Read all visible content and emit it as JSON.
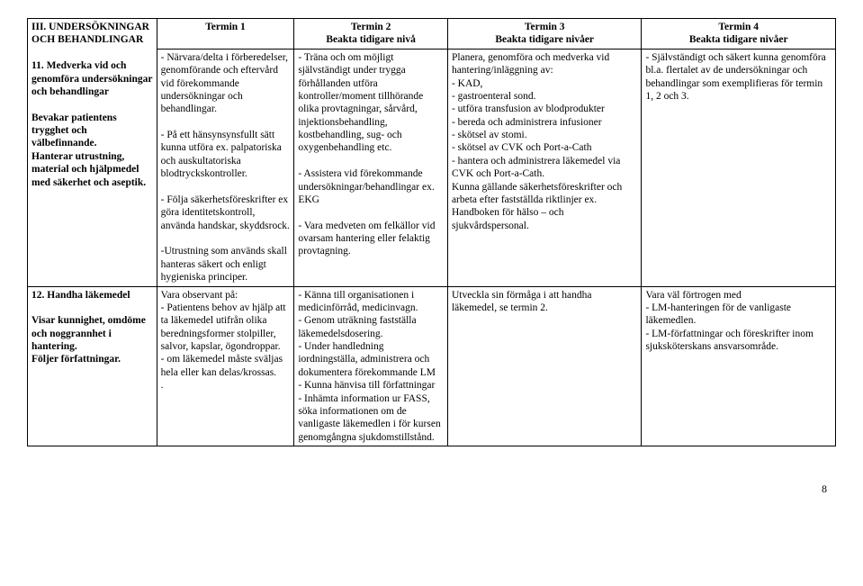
{
  "headers": {
    "t1": "Termin 1",
    "t2": "Termin 2",
    "t2_sub": "Beakta tidigare nivå",
    "t3": "Termin 3",
    "t3_sub": "Beakta tidigare nivåer",
    "t4": "Termin 4",
    "t4_sub": "Beakta tidigare nivåer"
  },
  "row1": {
    "col0_heading": "III.   UNDERSÖKNINGAR OCH BEHANDLINGAR",
    "col0_item_title": "11.  Medverka vid och genomföra undersökningar och behandlingar",
    "col0_para1": "Bevakar patientens trygghet och välbefinnande.",
    "col0_para2": "Hanterar utrustning, material och hjälpmedel med säkerhet och aseptik.",
    "t1_p1": "- Närvara/delta i förberedelser, genomförande och eftervård vid förekommande undersökningar och behandlingar.",
    "t1_p2": "- På ett hänsynsynsfullt sätt kunna utföra ex. palpatoriska och auskultatoriska blodtryckskontroller.",
    "t1_p3": "- Följa säkerhetsföreskrifter ex göra identitetskontroll, använda handskar, skyddsrock.",
    "t1_p4": " -Utrustning som används skall hanteras säkert och enligt hygieniska principer.",
    "t2_p1": "- Träna och om möjligt självständigt under trygga förhållanden utföra kontroller/moment tillhörande olika provtagningar, sårvård, injektionsbehandling, kostbehandling, sug- och oxygenbehandling etc.",
    "t2_p2": "- Assistera vid förekommande undersökningar/behandlingar ex. EKG",
    "t2_p3": "- Vara medveten om felkällor vid ovarsam hantering eller felaktig provtagning.",
    "t3_intro": "Planera, genomföra och medverka vid hantering/inläggning av:",
    "t3_li1": "-    KAD,",
    "t3_li2": "-    gastroenteral sond.",
    "t3_li3": "-    utföra transfusion av blodprodukter",
    "t3_li4": "-    bereda och administrera infusioner",
    "t3_li5": "-    skötsel av stomi.",
    "t3_li6": "-    skötsel av  CVK och Port-a-Cath",
    "t3_li7": "-    hantera och administrera läkemedel via CVK och Port-a-Cath.",
    "t3_tail": "Kunna gällande säkerhetsföreskrifter och arbeta efter fastställda riktlinjer ex. Handboken för hälso – och sjukvårdspersonal.",
    "t4_p1": "- Självständigt och säkert kunna genomföra bl.a. flertalet av de undersökningar och behandlingar som exemplifieras för termin 1, 2 och 3."
  },
  "row2": {
    "col0_item_title": "12. Handha läkemedel",
    "col0_para1": "Visar kunnighet, omdöme och noggrannhet i hantering.",
    "col0_para2": "Följer författningar.",
    "t1_p1": "Vara observant på:",
    "t1_p2": "- Patientens behov av hjälp att ta läkemedel utifrån olika beredningsformer stolpiller, salvor, kapslar, ögondroppar.",
    "t1_p3": "- om läkemedel måste sväljas hela eller kan delas/krossas.",
    "t1_p4": ".",
    "t2_p1": "- Känna till organisationen i medicinförråd, medicinvagn.",
    "t2_p2": "- Genom uträkning fastställa läkemedelsdosering.",
    "t2_p3": "- Under handledning iordningställa, administrera och dokumentera förekommande LM",
    "t2_p4": "- Kunna hänvisa till författningar",
    "t2_p5": "- Inhämta information ur FASS, söka informationen om de vanligaste läkemedlen i för kursen genomgångna sjukdomstillstånd.",
    "t3_p1": "Utveckla sin förmåga i att handha läkemedel, se termin 2.",
    "t4_p1": "Vara väl förtrogen med",
    "t4_p2": "- LM-hanteringen för de vanligaste läkemedlen.",
    "t4_p3": "- LM-författningar och föreskrifter inom sjuksköterskans ansvarsområde."
  },
  "page_number": "8"
}
